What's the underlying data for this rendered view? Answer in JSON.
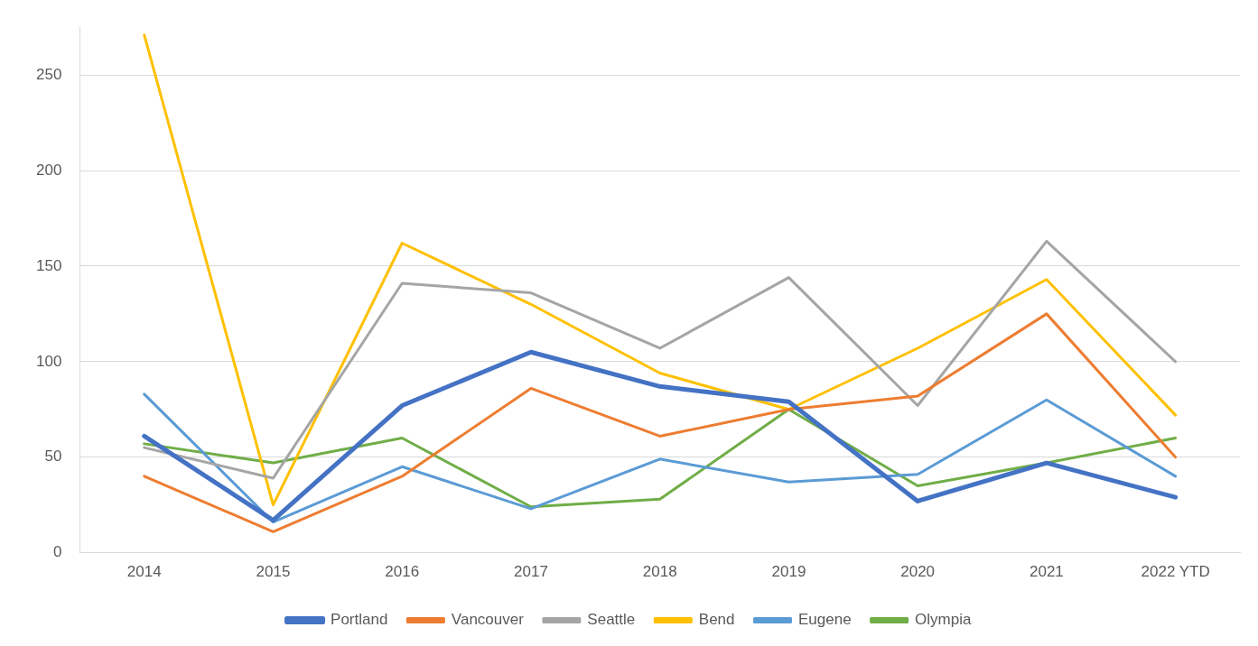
{
  "chart_data": {
    "type": "line",
    "categories": [
      "2014",
      "2015",
      "2016",
      "2017",
      "2018",
      "2019",
      "2020",
      "2021",
      "2022 YTD"
    ],
    "series": [
      {
        "name": "Portland",
        "color": "#4472c4",
        "values": [
          61,
          17,
          77,
          105,
          87,
          79,
          27,
          47,
          29
        ]
      },
      {
        "name": "Vancouver",
        "color": "#ed7d31",
        "values": [
          40,
          11,
          40,
          86,
          61,
          75,
          82,
          125,
          50
        ]
      },
      {
        "name": "Seattle",
        "color": "#a5a5a5",
        "values": [
          55,
          39,
          141,
          136,
          107,
          144,
          77,
          163,
          100
        ]
      },
      {
        "name": "Bend",
        "color": "#ffc000",
        "values": [
          271,
          25,
          162,
          130,
          94,
          75,
          107,
          143,
          72
        ]
      },
      {
        "name": "Eugene",
        "color": "#5b9bd5",
        "values": [
          83,
          16,
          45,
          23,
          49,
          37,
          41,
          80,
          40
        ]
      },
      {
        "name": "Olympia",
        "color": "#70ad47",
        "values": [
          57,
          47,
          60,
          24,
          28,
          75,
          35,
          47,
          60
        ]
      }
    ],
    "ylim": [
      0,
      275
    ],
    "yticks": [
      0,
      50,
      100,
      150,
      200,
      250
    ],
    "grid": "y",
    "legend": "bottom",
    "marker": "none",
    "line_style": "solid"
  }
}
